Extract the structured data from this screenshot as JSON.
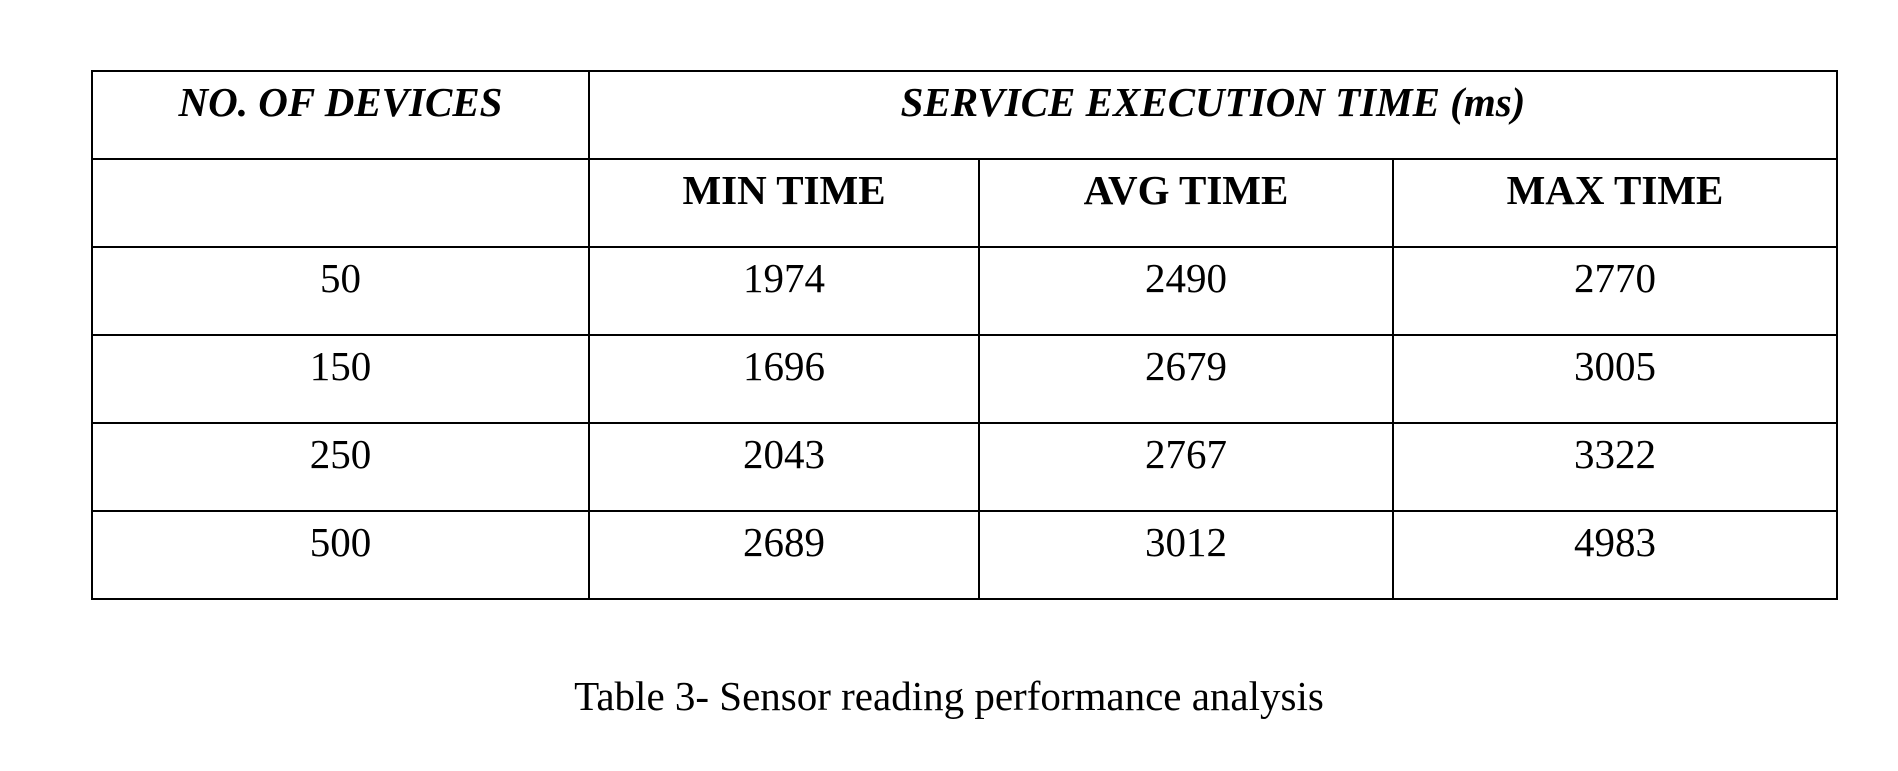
{
  "table": {
    "header": {
      "devices_label": "NO. OF DEVICES",
      "group_label": "SERVICE EXECUTION TIME (ms)",
      "min_label": "MIN TIME",
      "avg_label": "AVG TIME",
      "max_label": "MAX TIME"
    },
    "rows": [
      {
        "devices": "50",
        "min": "1974",
        "avg": "2490",
        "max": "2770"
      },
      {
        "devices": "150",
        "min": "1696",
        "avg": "2679",
        "max": "3005"
      },
      {
        "devices": "250",
        "min": "2043",
        "avg": "2767",
        "max": "3322"
      },
      {
        "devices": "500",
        "min": "2689",
        "avg": "3012",
        "max": "4983"
      }
    ]
  },
  "caption": "Table 3- Sensor reading performance analysis"
}
